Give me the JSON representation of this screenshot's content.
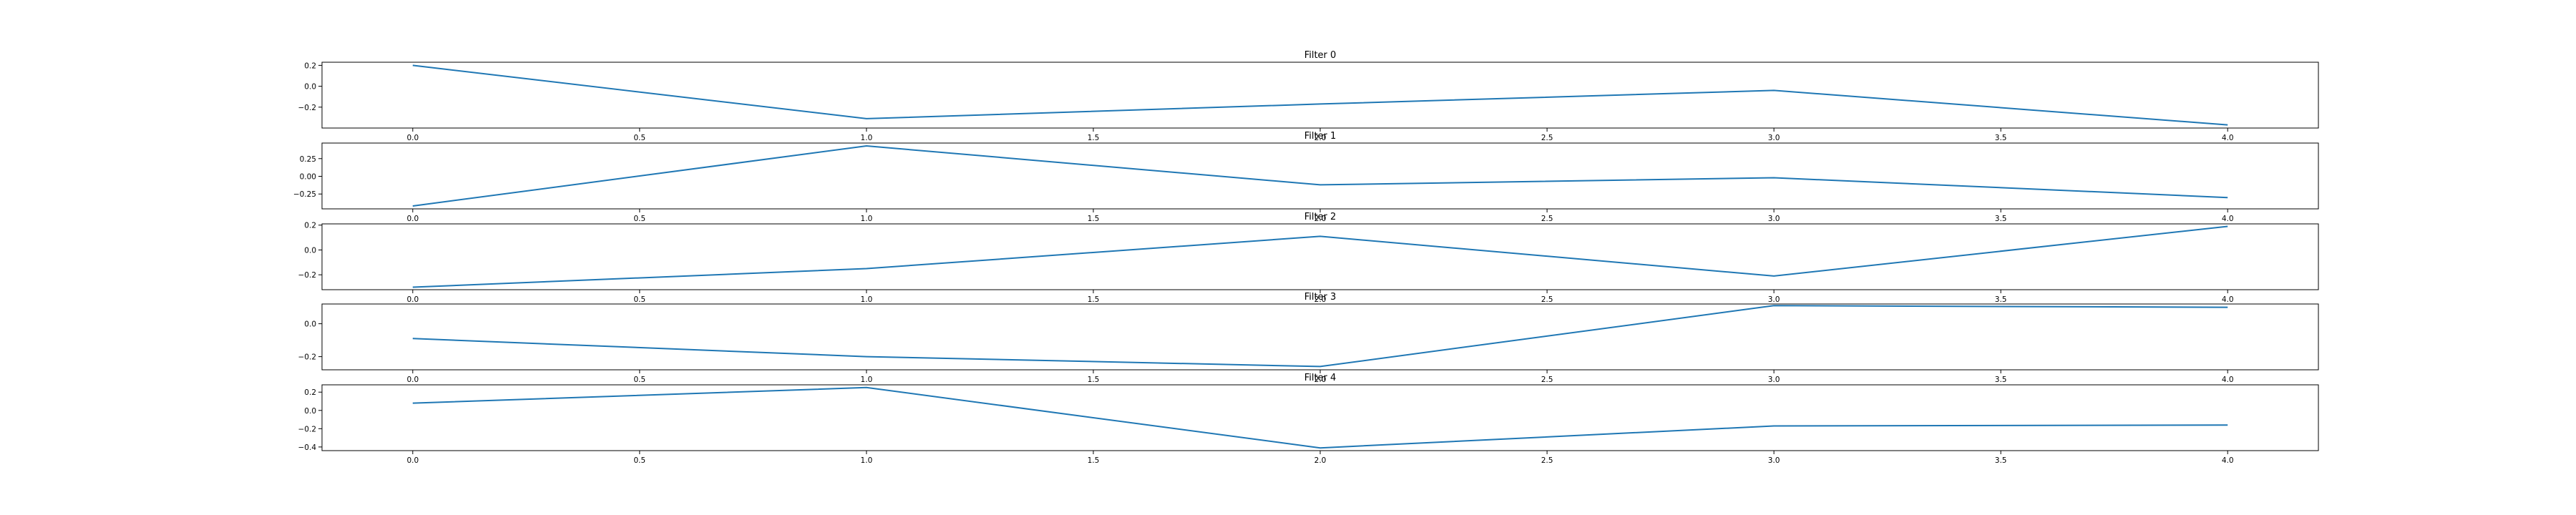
{
  "chart_data": [
    {
      "type": "line",
      "title": "Filter 0",
      "x": [
        0,
        1,
        2,
        3,
        4
      ],
      "values": [
        0.2,
        -0.31,
        -0.17,
        -0.04,
        -0.37
      ],
      "xlim": [
        -0.2,
        4.2
      ],
      "ylim": [
        -0.4,
        0.23
      ],
      "xticks": [
        0.0,
        0.5,
        1.0,
        1.5,
        2.0,
        2.5,
        3.0,
        3.5,
        4.0
      ],
      "xtick_labels": [
        "0.0",
        "0.5",
        "1.0",
        "1.5",
        "2.0",
        "2.5",
        "3.0",
        "3.5",
        "4.0"
      ],
      "yticks": [
        0.2,
        0.0,
        -0.2
      ],
      "ytick_labels": [
        "0.2",
        "0.0",
        "−0.2"
      ],
      "color": "#1f77b4"
    },
    {
      "type": "line",
      "title": "Filter 1",
      "x": [
        0,
        1,
        2,
        3,
        4
      ],
      "values": [
        -0.42,
        0.43,
        -0.12,
        -0.02,
        -0.3
      ],
      "xlim": [
        -0.2,
        4.2
      ],
      "ylim": [
        -0.46,
        0.47
      ],
      "xticks": [
        0.0,
        0.5,
        1.0,
        1.5,
        2.0,
        2.5,
        3.0,
        3.5,
        4.0
      ],
      "xtick_labels": [
        "0.0",
        "0.5",
        "1.0",
        "1.5",
        "2.0",
        "2.5",
        "3.0",
        "3.5",
        "4.0"
      ],
      "yticks": [
        0.25,
        0.0,
        -0.25
      ],
      "ytick_labels": [
        "0.25",
        "0.00",
        "−0.25"
      ],
      "color": "#1f77b4"
    },
    {
      "type": "line",
      "title": "Filter 2",
      "x": [
        0,
        1,
        2,
        3,
        4
      ],
      "values": [
        -0.3,
        -0.15,
        0.11,
        -0.21,
        0.19
      ],
      "xlim": [
        -0.2,
        4.2
      ],
      "ylim": [
        -0.32,
        0.21
      ],
      "xticks": [
        0.0,
        0.5,
        1.0,
        1.5,
        2.0,
        2.5,
        3.0,
        3.5,
        4.0
      ],
      "xtick_labels": [
        "0.0",
        "0.5",
        "1.0",
        "1.5",
        "2.0",
        "2.5",
        "3.0",
        "3.5",
        "4.0"
      ],
      "yticks": [
        0.2,
        0.0,
        -0.2
      ],
      "ytick_labels": [
        "0.2",
        "0.0",
        "−0.2"
      ],
      "color": "#1f77b4"
    },
    {
      "type": "line",
      "title": "Filter 3",
      "x": [
        0,
        1,
        2,
        3,
        4
      ],
      "values": [
        -0.09,
        -0.2,
        -0.26,
        0.11,
        0.1
      ],
      "xlim": [
        -0.2,
        4.2
      ],
      "ylim": [
        -0.28,
        0.12
      ],
      "xticks": [
        0.0,
        0.5,
        1.0,
        1.5,
        2.0,
        2.5,
        3.0,
        3.5,
        4.0
      ],
      "xtick_labels": [
        "0.0",
        "0.5",
        "1.0",
        "1.5",
        "2.0",
        "2.5",
        "3.0",
        "3.5",
        "4.0"
      ],
      "yticks": [
        0.0,
        -0.2
      ],
      "ytick_labels": [
        "0.0",
        "−0.2"
      ],
      "color": "#1f77b4"
    },
    {
      "type": "line",
      "title": "Filter 4",
      "x": [
        0,
        1,
        2,
        3,
        4
      ],
      "values": [
        0.08,
        0.25,
        -0.41,
        -0.17,
        -0.16
      ],
      "xlim": [
        -0.2,
        4.2
      ],
      "ylim": [
        -0.44,
        0.28
      ],
      "xticks": [
        0.0,
        0.5,
        1.0,
        1.5,
        2.0,
        2.5,
        3.0,
        3.5,
        4.0
      ],
      "xtick_labels": [
        "0.0",
        "0.5",
        "1.0",
        "1.5",
        "2.0",
        "2.5",
        "3.0",
        "3.5",
        "4.0"
      ],
      "yticks": [
        0.2,
        0.0,
        -0.2,
        -0.4
      ],
      "ytick_labels": [
        "0.2",
        "0.0",
        "−0.2",
        "−0.4"
      ],
      "color": "#1f77b4"
    }
  ]
}
